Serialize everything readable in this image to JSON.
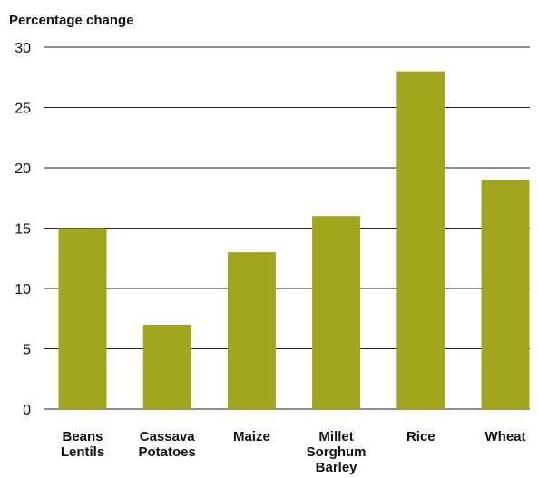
{
  "chart_data": {
    "type": "bar",
    "ylabel": "Percentage change",
    "xlabel": "",
    "categories": [
      [
        "Beans",
        "Lentils"
      ],
      [
        "Cassava",
        "Potatoes"
      ],
      [
        "Maize"
      ],
      [
        "Millet",
        "Sorghum",
        "Barley"
      ],
      [
        "Rice"
      ],
      [
        "Wheat"
      ]
    ],
    "values": [
      15,
      7,
      13,
      16,
      28,
      19
    ],
    "ylim": [
      0,
      30
    ],
    "yticks": [
      0,
      5,
      10,
      15,
      20,
      25,
      30
    ],
    "grid": true,
    "legend": "none",
    "bar_color": "#a1a61f"
  }
}
